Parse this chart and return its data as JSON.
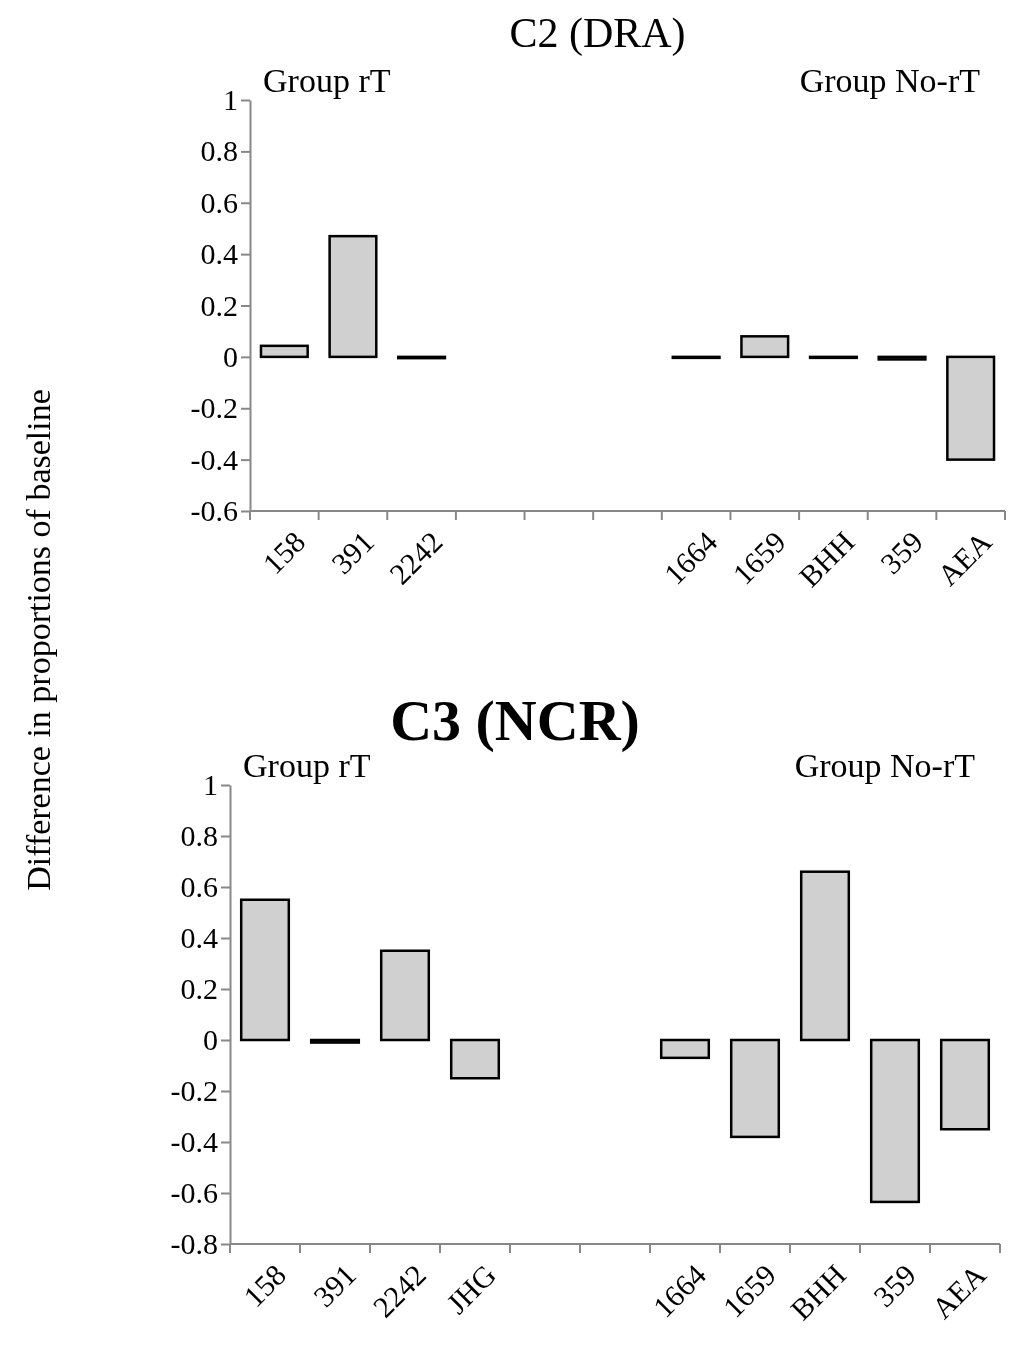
{
  "chart_data": [
    {
      "type": "bar",
      "title": "C2 (DRA)",
      "ylabel": "Difference in proportions of baseline",
      "annotations": [
        "Group rT",
        "Group No-rT"
      ],
      "categories": [
        "158",
        "391",
        "2242",
        null,
        null,
        null,
        "1664",
        "1659",
        "BHH",
        "359",
        "AEA"
      ],
      "values": [
        0.043,
        0.47,
        -0.005,
        null,
        null,
        null,
        0,
        0.08,
        0,
        -0.01,
        -0.4
      ],
      "color": "#d0d0d0",
      "ylim": [
        -0.6,
        1
      ],
      "yticks": [
        -0.6,
        -0.4,
        -0.2,
        0,
        0.2,
        0.4,
        0.6,
        0.8,
        1
      ],
      "grid": false
    },
    {
      "type": "bar",
      "title": "C3 (NCR)",
      "annotations": [
        "Group rT",
        "Group No-rT"
      ],
      "categories": [
        "158",
        "391",
        "2242",
        "JHG",
        null,
        null,
        "1664",
        "1659",
        "BHH",
        "359",
        "AEA"
      ],
      "values": [
        0.55,
        -0.01,
        0.35,
        -0.15,
        null,
        null,
        -0.07,
        -0.38,
        0.66,
        -0.635,
        -0.35
      ],
      "color": "#d0d0d0",
      "ylim": [
        -0.8,
        1
      ],
      "yticks": [
        -0.8,
        -0.6,
        -0.4,
        -0.2,
        0,
        0.2,
        0.4,
        0.6,
        0.8,
        1
      ],
      "grid": false
    }
  ]
}
